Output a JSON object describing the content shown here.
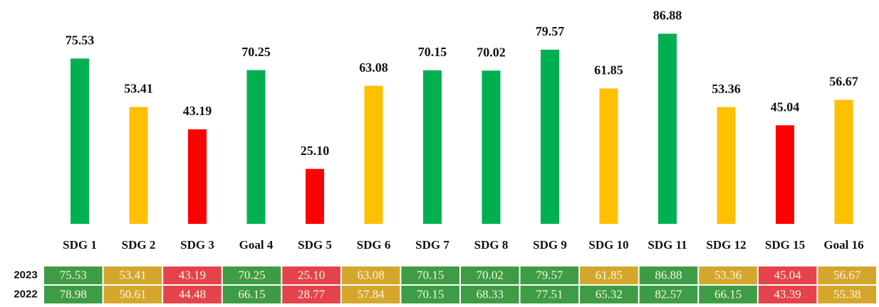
{
  "chart_data": {
    "type": "bar",
    "categories": [
      "SDG 1",
      "SDG 2",
      "SDG 3",
      "Goal 4",
      "SDG 5",
      "SDG 6",
      "SDG 7",
      "SDG 8",
      "SDG 9",
      "SDG 10",
      "SDG 11",
      "SDG 12",
      "SDG 15",
      "Goal 16"
    ],
    "values": [
      75.53,
      53.41,
      43.19,
      70.25,
      25.1,
      63.08,
      70.15,
      70.02,
      79.57,
      61.85,
      86.88,
      53.36,
      45.04,
      56.67
    ],
    "value_labels": [
      "75.53",
      "53.41",
      "43.19",
      "70.25",
      "25.10",
      "63.08",
      "70.15",
      "70.02",
      "79.57",
      "61.85",
      "86.88",
      "53.36",
      "45.04",
      "56.67"
    ],
    "colors": [
      "#00b050",
      "#ffc000",
      "#ff0000",
      "#00b050",
      "#ff0000",
      "#ffc000",
      "#00b050",
      "#00b050",
      "#00b050",
      "#ffc000",
      "#00b050",
      "#ffc000",
      "#ff0000",
      "#ffc000"
    ],
    "ylim": [
      0,
      100
    ]
  },
  "table": {
    "rows": [
      {
        "label": "2023",
        "cells": [
          "75.53",
          "53.41",
          "43.19",
          "70.25",
          "25.10",
          "63.08",
          "70.15",
          "70.02",
          "79.57",
          "61.85",
          "86.88",
          "53.36",
          "45.04",
          "56.67"
        ],
        "colors": [
          "#3e9c45",
          "#d4a72c",
          "#e5434c",
          "#3e9c45",
          "#e5434c",
          "#d4a72c",
          "#3e9c45",
          "#3e9c45",
          "#3e9c45",
          "#d4a72c",
          "#3e9c45",
          "#d4a72c",
          "#e5434c",
          "#d4a72c"
        ]
      },
      {
        "label": "2022",
        "cells": [
          "78.98",
          "50.61",
          "44.48",
          "66.15",
          "28.77",
          "57.84",
          "70.15",
          "68.33",
          "77.51",
          "65.32",
          "82.57",
          "66.15",
          "43.39",
          "55.38"
        ],
        "colors": [
          "#3e9c45",
          "#d4a72c",
          "#e5434c",
          "#3e9c45",
          "#e5434c",
          "#d4a72c",
          "#3e9c45",
          "#3e9c45",
          "#3e9c45",
          "#3e9c45",
          "#3e9c45",
          "#3e9c45",
          "#e5434c",
          "#d4a72c"
        ]
      }
    ]
  }
}
